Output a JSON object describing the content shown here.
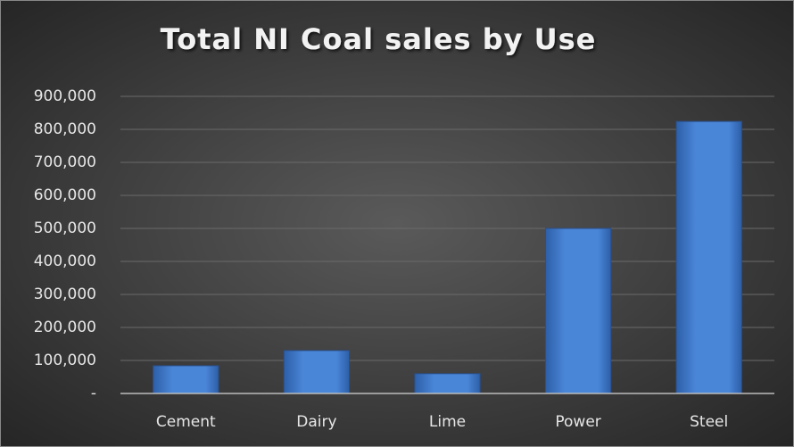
{
  "chart_data": {
    "type": "bar",
    "title": "Total NI Coal sales by Use",
    "categories": [
      "Cement",
      "Dairy",
      "Lime",
      "Power",
      "Steel"
    ],
    "values": [
      84000,
      130000,
      60000,
      500000,
      824000
    ],
    "color": "#4a86d8",
    "ylim": [
      0,
      900000
    ],
    "yticks": [
      {
        "value": 0,
        "label": "-"
      },
      {
        "value": 100000,
        "label": "100,000"
      },
      {
        "value": 200000,
        "label": "200,000"
      },
      {
        "value": 300000,
        "label": "300,000"
      },
      {
        "value": 400000,
        "label": "400,000"
      },
      {
        "value": 500000,
        "label": "500,000"
      },
      {
        "value": 600000,
        "label": "600,000"
      },
      {
        "value": 700000,
        "label": "700,000"
      },
      {
        "value": 800000,
        "label": "800,000"
      },
      {
        "value": 900000,
        "label": "900,000"
      }
    ],
    "grid": true
  }
}
